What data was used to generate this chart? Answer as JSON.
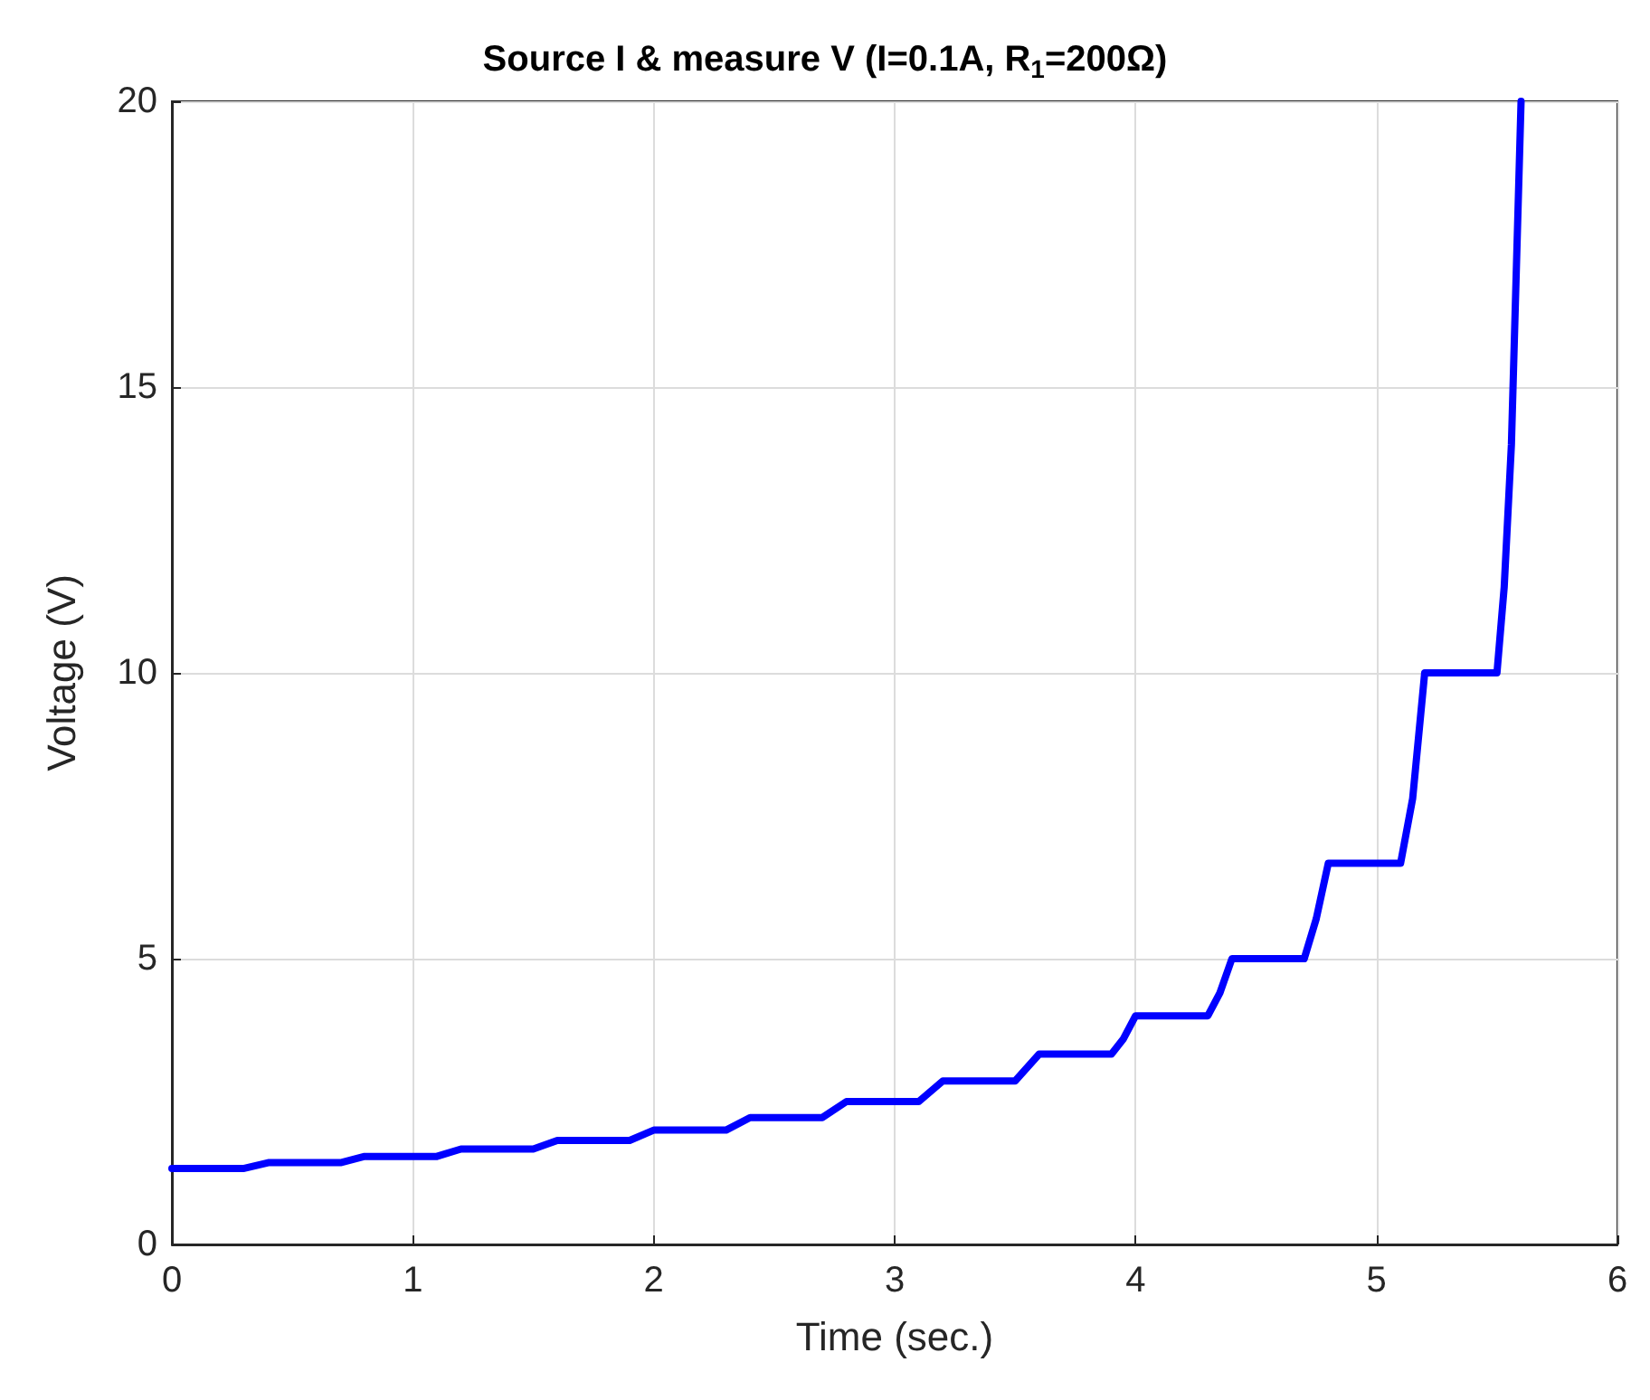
{
  "chart_data": {
    "type": "line",
    "title": "Source I & measure V (I=0.1A, R$_{1}$=200Ω)",
    "xlabel": "Time (sec.)",
    "ylabel": "Voltage (V)",
    "x": [
      0,
      0.3,
      0.4,
      0.7,
      0.8,
      1.1,
      1.2,
      1.5,
      1.6,
      1.9,
      2.0,
      2.3,
      2.4,
      2.7,
      2.8,
      3.1,
      3.2,
      3.5,
      3.6,
      3.9,
      3.95,
      4.0,
      4.3,
      4.35,
      4.4,
      4.7,
      4.75,
      4.8,
      5.1,
      5.15,
      5.2,
      5.5,
      5.53,
      5.56,
      5.6
    ],
    "series": [
      {
        "color": "#0000ff",
        "values": [
          1.33,
          1.33,
          1.43,
          1.43,
          1.54,
          1.54,
          1.67,
          1.67,
          1.82,
          1.82,
          2.0,
          2.0,
          2.22,
          2.22,
          2.5,
          2.5,
          2.86,
          2.86,
          3.33,
          3.33,
          3.6,
          4.0,
          4.0,
          4.4,
          5.0,
          5.0,
          5.7,
          6.67,
          6.67,
          7.8,
          10.0,
          10.0,
          11.5,
          14.0,
          20.0
        ]
      }
    ],
    "xlim": [
      0,
      6
    ],
    "xticks": [
      0,
      1,
      2,
      3,
      4,
      5,
      6
    ],
    "ylim": [
      0,
      20
    ],
    "yticks": [
      0,
      5,
      10,
      15,
      20
    ],
    "grid": true,
    "marker": "none",
    "line_style": "solid"
  }
}
